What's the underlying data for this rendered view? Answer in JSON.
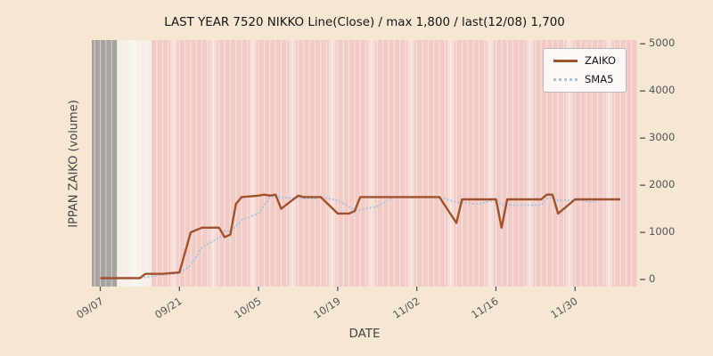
{
  "chart_data": {
    "type": "line",
    "title": "LAST YEAR 7520 NIKKO Line(Close) / max 1,800 / last(12/08) 1,700",
    "xlabel": "DATE",
    "ylabel": "IPPAN ZAIKO (volume)",
    "ylim": [
      0,
      5000
    ],
    "y_ticks": [
      0,
      1000,
      2000,
      3000,
      4000,
      5000
    ],
    "y_tick_labels": [
      "0",
      "1000",
      "2000",
      "3000",
      "4000",
      "5000"
    ],
    "y_axis_side": "right",
    "x_tick_labels": [
      "09/07",
      "09/21",
      "10/05",
      "10/19",
      "11/02",
      "11/16",
      "11/30"
    ],
    "x_domain": [
      "09/05",
      "12/11"
    ],
    "legend_position": "upper right",
    "annotations": {
      "max": 1800,
      "last_date": "12/08",
      "last_value": 1700
    },
    "colors": {
      "figure_bg": "#f5e7d2",
      "plot_bg": "#f2cbc5",
      "zaiko": "#a0522d",
      "sma5": "#a9c4e1",
      "gray_band": "#a7a3a0",
      "cream_band": "#f6efe7"
    },
    "background_bands": [
      {
        "from": "09/05",
        "to": "09/10",
        "color": "#a7a3a0"
      },
      {
        "from": "09/10",
        "to": "09/16",
        "color": "#f6efe7"
      }
    ],
    "legend": {
      "items": [
        {
          "label": "ZAIKO",
          "color": "#a0522d",
          "style": "solid"
        },
        {
          "label": "SMA5",
          "color": "#a9c4e1",
          "style": "dotted"
        }
      ]
    },
    "series": [
      {
        "name": "ZAIKO",
        "style": "solid",
        "color": "#a0522d",
        "points": [
          [
            "09/07",
            30
          ],
          [
            "09/08",
            30
          ],
          [
            "09/09",
            30
          ],
          [
            "09/10",
            30
          ],
          [
            "09/11",
            30
          ],
          [
            "09/14",
            30
          ],
          [
            "09/15",
            120
          ],
          [
            "09/16",
            120
          ],
          [
            "09/17",
            120
          ],
          [
            "09/18",
            120
          ],
          [
            "09/21",
            150
          ],
          [
            "09/23",
            1000
          ],
          [
            "09/24",
            1050
          ],
          [
            "09/25",
            1100
          ],
          [
            "09/28",
            1100
          ],
          [
            "09/29",
            900
          ],
          [
            "09/30",
            950
          ],
          [
            "10/01",
            1600
          ],
          [
            "10/02",
            1750
          ],
          [
            "10/05",
            1780
          ],
          [
            "10/06",
            1800
          ],
          [
            "10/07",
            1780
          ],
          [
            "10/08",
            1800
          ],
          [
            "10/09",
            1500
          ],
          [
            "10/12",
            1780
          ],
          [
            "10/13",
            1750
          ],
          [
            "10/14",
            1750
          ],
          [
            "10/15",
            1750
          ],
          [
            "10/16",
            1750
          ],
          [
            "10/19",
            1400
          ],
          [
            "10/20",
            1400
          ],
          [
            "10/21",
            1400
          ],
          [
            "10/22",
            1450
          ],
          [
            "10/23",
            1750
          ],
          [
            "10/26",
            1750
          ],
          [
            "10/27",
            1750
          ],
          [
            "10/28",
            1750
          ],
          [
            "10/29",
            1750
          ],
          [
            "10/30",
            1750
          ],
          [
            "11/02",
            1750
          ],
          [
            "11/04",
            1750
          ],
          [
            "11/05",
            1750
          ],
          [
            "11/06",
            1750
          ],
          [
            "11/09",
            1200
          ],
          [
            "11/10",
            1700
          ],
          [
            "11/11",
            1700
          ],
          [
            "11/12",
            1700
          ],
          [
            "11/13",
            1700
          ],
          [
            "11/16",
            1700
          ],
          [
            "11/17",
            1100
          ],
          [
            "11/18",
            1700
          ],
          [
            "11/19",
            1700
          ],
          [
            "11/20",
            1700
          ],
          [
            "11/24",
            1700
          ],
          [
            "11/25",
            1800
          ],
          [
            "11/26",
            1800
          ],
          [
            "11/27",
            1400
          ],
          [
            "11/30",
            1700
          ],
          [
            "12/01",
            1700
          ],
          [
            "12/02",
            1700
          ],
          [
            "12/03",
            1700
          ],
          [
            "12/04",
            1700
          ],
          [
            "12/07",
            1700
          ],
          [
            "12/08",
            1700
          ]
        ]
      },
      {
        "name": "SMA5",
        "style": "dotted",
        "color": "#a9c4e1",
        "derived_from": "ZAIKO",
        "window": 5
      }
    ]
  }
}
